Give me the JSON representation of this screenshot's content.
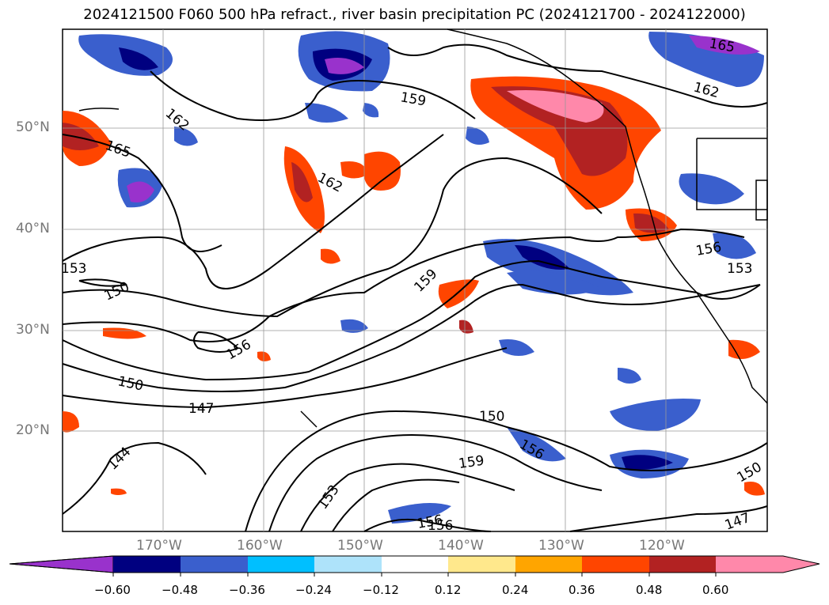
{
  "title": "2024121500 F060 500 hPa refract., river basin precipitation PC (2024121700 - 2024122000)",
  "latitude_labels": [
    "50°N",
    "40°N",
    "30°N",
    "20°N"
  ],
  "longitude_labels": [
    "170°W",
    "160°W",
    "150°W",
    "140°W",
    "130°W",
    "120°W"
  ],
  "contour_labels": [
    "162",
    "159",
    "165",
    "162",
    "162",
    "153",
    "150",
    "159",
    "156",
    "156",
    "153",
    "156",
    "150",
    "147",
    "150",
    "156",
    "159",
    "144",
    "153",
    "156",
    "150",
    "147",
    "165"
  ],
  "colorbar": {
    "ticks": [
      "−0.60",
      "−0.48",
      "−0.36",
      "−0.24",
      "−0.12",
      "0.12",
      "0.24",
      "0.36",
      "0.48",
      "0.60"
    ],
    "colors": [
      "#9932cc",
      "#000080",
      "#3a5fcd",
      "#00bfff",
      "#aee3fa",
      "#ffffff",
      "#ffe88c",
      "#ffa500",
      "#ff4500",
      "#b22222",
      "#ff88aa"
    ]
  }
}
